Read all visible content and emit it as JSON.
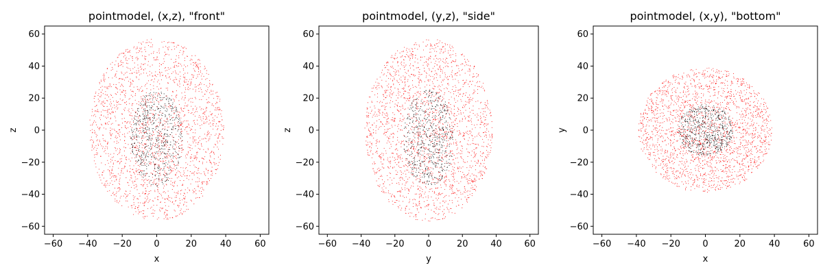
{
  "chart_data": [
    {
      "type": "scatter",
      "title": "pointmodel, (x,z), \"front\"",
      "xlabel": "x",
      "ylabel": "z",
      "xlim": [
        -65,
        65
      ],
      "ylim": [
        -65,
        65
      ],
      "xticks": [
        "−60",
        "−40",
        "−20",
        "0",
        "20",
        "40",
        "60"
      ],
      "yticks": [
        "−60",
        "−40",
        "−20",
        "0",
        "20",
        "40",
        "60"
      ],
      "grid": false,
      "series": [
        {
          "color": "#ff0000",
          "distribution": "ellipse",
          "center": [
            0,
            0
          ],
          "semi_axes": [
            39,
            57
          ],
          "approx_count": 2200
        },
        {
          "color": "#000000",
          "distribution": "ellipse",
          "center": [
            0,
            -5
          ],
          "semi_axes": [
            15,
            30
          ],
          "approx_count": 600
        }
      ]
    },
    {
      "type": "scatter",
      "title": "pointmodel, (y,z), \"side\"",
      "xlabel": "y",
      "ylabel": "z",
      "xlim": [
        -65,
        65
      ],
      "ylim": [
        -65,
        65
      ],
      "xticks": [
        "−60",
        "−40",
        "−20",
        "0",
        "20",
        "40",
        "60"
      ],
      "yticks": [
        "−60",
        "−40",
        "−20",
        "0",
        "20",
        "40",
        "60"
      ],
      "grid": false,
      "series": [
        {
          "color": "#ff0000",
          "distribution": "ellipse",
          "center": [
            0,
            0
          ],
          "semi_axes": [
            38,
            57
          ],
          "approx_count": 2200
        },
        {
          "color": "#000000",
          "distribution": "ellipse",
          "center": [
            0,
            -5
          ],
          "semi_axes": [
            15,
            30
          ],
          "approx_count": 600
        }
      ]
    },
    {
      "type": "scatter",
      "title": "pointmodel, (x,y), \"bottom\"",
      "xlabel": "x",
      "ylabel": "y",
      "xlim": [
        -65,
        65
      ],
      "ylim": [
        -65,
        65
      ],
      "xticks": [
        "−60",
        "−40",
        "−20",
        "0",
        "20",
        "40",
        "60"
      ],
      "yticks": [
        "−60",
        "−40",
        "−20",
        "0",
        "20",
        "40",
        "60"
      ],
      "grid": false,
      "series": [
        {
          "color": "#ff0000",
          "distribution": "ellipse",
          "center": [
            0,
            0
          ],
          "semi_axes": [
            39,
            39
          ],
          "approx_count": 2200
        },
        {
          "color": "#000000",
          "distribution": "ellipse",
          "center": [
            0,
            0
          ],
          "semi_axes": [
            16,
            16
          ],
          "approx_count": 600
        }
      ]
    }
  ]
}
